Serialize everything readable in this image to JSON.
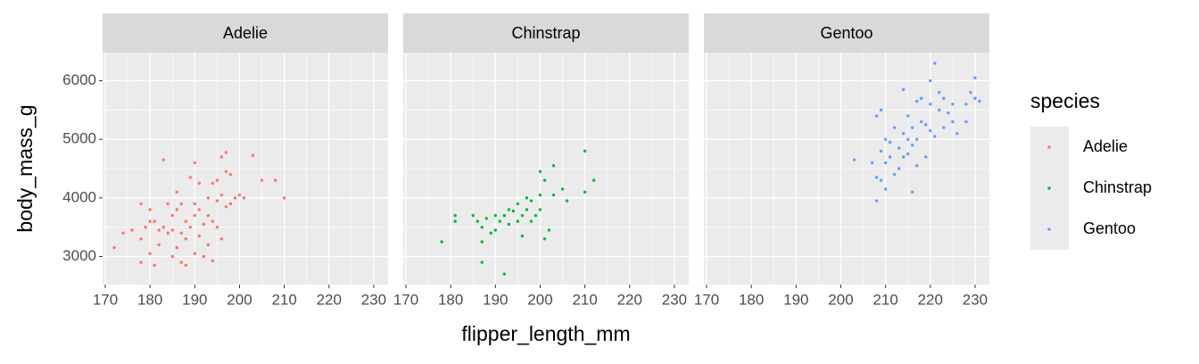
{
  "chart_data": {
    "type": "scatter",
    "facet_by_series": true,
    "x_label": "flipper_length_mm",
    "y_label": "body_mass_g",
    "legend_title": "species",
    "legend_position": "right",
    "grid": true,
    "xlim": [
      169.4,
      233.2
    ],
    "ylim": [
      2520,
      6480
    ],
    "xticks": [
      170,
      180,
      190,
      200,
      210,
      220,
      230
    ],
    "yticks": [
      3000,
      4000,
      5000,
      6000
    ],
    "series": [
      {
        "name": "Adelie",
        "color": "#F8766D",
        "x": [
          172,
          174,
          176,
          178,
          178,
          178,
          179,
          180,
          180,
          180,
          181,
          181,
          182,
          182,
          183,
          183,
          184,
          184,
          185,
          185,
          185,
          186,
          186,
          186,
          187,
          187,
          187,
          188,
          188,
          189,
          189,
          190,
          190,
          190,
          190,
          191,
          191,
          191,
          192,
          192,
          193,
          193,
          193,
          194,
          194,
          195,
          195,
          195,
          196,
          196,
          196,
          197,
          197,
          197,
          198,
          198,
          199,
          200,
          201,
          203,
          205,
          208,
          210,
          194,
          188
        ],
        "values": [
          3150,
          3400,
          3450,
          2900,
          3300,
          3900,
          3500,
          3600,
          3800,
          3050,
          3600,
          2850,
          3200,
          3450,
          3500,
          4650,
          3400,
          3900,
          3700,
          3000,
          3450,
          3800,
          3150,
          4100,
          3400,
          3900,
          2900,
          3300,
          3600,
          3500,
          4350,
          3700,
          3900,
          3050,
          4600,
          3800,
          3350,
          4250,
          3550,
          3000,
          4000,
          3700,
          3200,
          3600,
          4250,
          3950,
          4300,
          3500,
          4050,
          4700,
          3300,
          4450,
          3850,
          4775,
          3900,
          4400,
          4000,
          4050,
          4000,
          4725,
          4300,
          4300,
          4000,
          2925,
          2850
        ]
      },
      {
        "name": "Chinstrap",
        "color": "#00BA38",
        "x": [
          178,
          181,
          181,
          185,
          186,
          187,
          187,
          187,
          188,
          189,
          190,
          190,
          191,
          192,
          192,
          193,
          193,
          194,
          195,
          195,
          196,
          196,
          197,
          197,
          198,
          198,
          199,
          200,
          200,
          200,
          201,
          201,
          202,
          203,
          203,
          205,
          206,
          210,
          210,
          212
        ],
        "values": [
          3250,
          3700,
          3600,
          3700,
          3600,
          3250,
          2900,
          3500,
          3650,
          3400,
          3700,
          3450,
          3600,
          3700,
          2700,
          3800,
          3550,
          3775,
          3600,
          3900,
          3700,
          3350,
          3800,
          4000,
          3950,
          3600,
          3700,
          3800,
          4050,
          4450,
          3300,
          4300,
          3450,
          4550,
          4050,
          4150,
          3950,
          4800,
          4100,
          4300
        ]
      },
      {
        "name": "Gentoo",
        "color": "#619CFF",
        "x": [
          203,
          207,
          208,
          208,
          208,
          209,
          209,
          209,
          210,
          210,
          210,
          211,
          211,
          212,
          212,
          213,
          213,
          214,
          214,
          215,
          215,
          215,
          216,
          216,
          216,
          217,
          217,
          218,
          218,
          219,
          219,
          220,
          220,
          220,
          221,
          221,
          222,
          222,
          223,
          223,
          224,
          225,
          225,
          226,
          228,
          228,
          229,
          230,
          230,
          231,
          214,
          217
        ],
        "values": [
          4650,
          4600,
          3950,
          4350,
          5400,
          4300,
          4800,
          5500,
          4600,
          5000,
          4150,
          4700,
          4950,
          4400,
          5200,
          4850,
          4500,
          5100,
          4700,
          5000,
          5400,
          4750,
          5200,
          4100,
          4900,
          5000,
          4550,
          5300,
          5700,
          5250,
          4700,
          5150,
          5600,
          6000,
          5050,
          6300,
          5500,
          5800,
          5200,
          5700,
          5450,
          5600,
          5300,
          5100,
          5600,
          5300,
          5800,
          5700,
          6050,
          5650,
          5850,
          5650
        ]
      }
    ]
  }
}
